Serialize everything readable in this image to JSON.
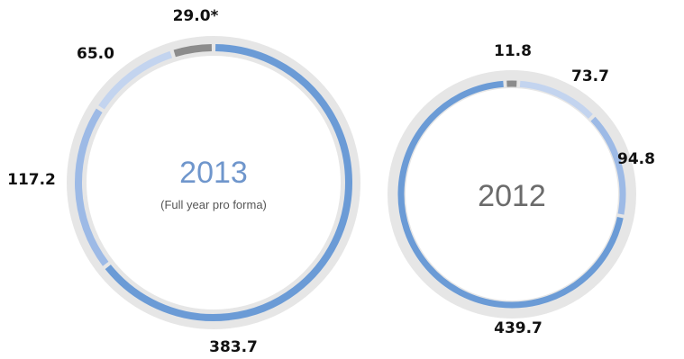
{
  "chart_data": [
    {
      "type": "pie",
      "title": "2013",
      "subtitle": "(Full year pro forma)",
      "title_color": "#6f96cc",
      "slices": [
        {
          "value": 383.7,
          "label": "383.7",
          "color": "#6b9bd6"
        },
        {
          "value": 117.2,
          "label": "117.2",
          "color": "#9dbae6"
        },
        {
          "value": 65.0,
          "label": "65.0",
          "color": "#c3d4ef"
        },
        {
          "value": 29.0,
          "label": "29.0*",
          "color": "#8c8c8c"
        }
      ]
    },
    {
      "type": "pie",
      "title": "2012",
      "subtitle": "",
      "title_color": "#6b6b6b",
      "slices": [
        {
          "value": 11.8,
          "label": "11.8",
          "color": "#8c8c8c"
        },
        {
          "value": 73.7,
          "label": "73.7",
          "color": "#c3d4ef"
        },
        {
          "value": 94.8,
          "label": "94.8",
          "color": "#9dbae6"
        },
        {
          "value": 439.7,
          "label": "439.7",
          "color": "#6b9bd6"
        }
      ]
    }
  ],
  "colors": {
    "track": "#e6e6e6",
    "label": "#111111"
  }
}
